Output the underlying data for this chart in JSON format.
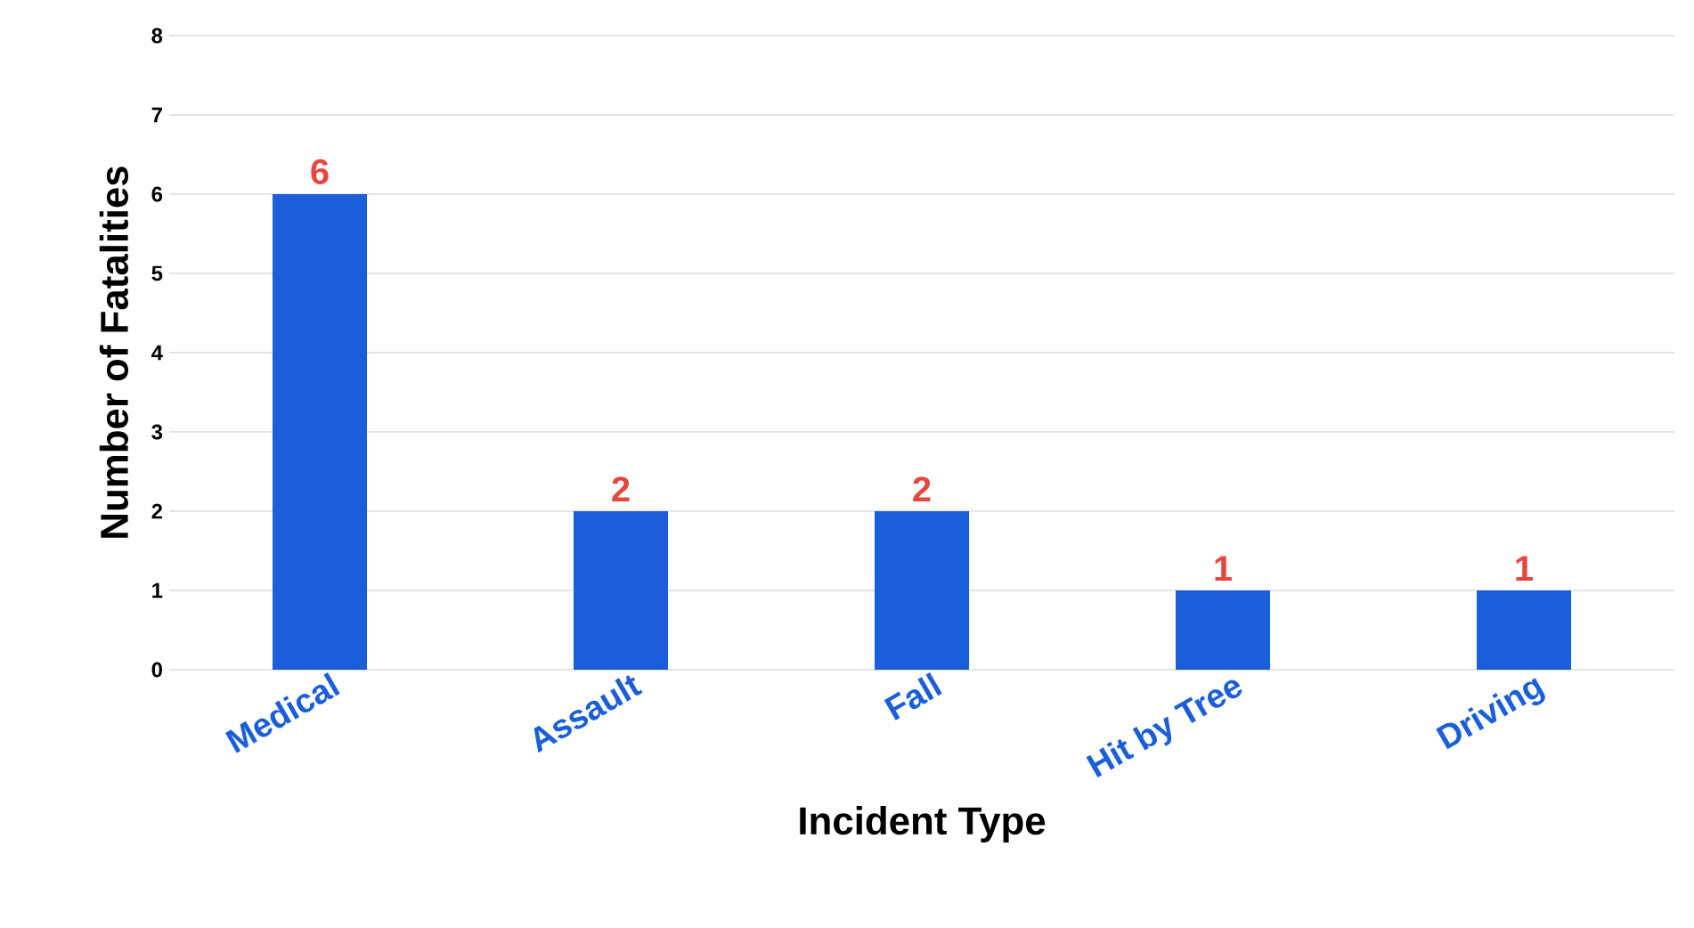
{
  "chart_data": {
    "type": "bar",
    "xlabel": "Incident Type",
    "ylabel": "Number of Fatalities",
    "categories": [
      "Medical",
      "Assault",
      "Fall",
      "Hit by Tree",
      "Driving"
    ],
    "values": [
      6,
      2,
      2,
      1,
      1
    ],
    "color": "#1a5fd9",
    "ylim": [
      0,
      8
    ],
    "yticks": [
      0,
      1,
      2,
      3,
      4,
      5,
      6,
      7,
      8
    ],
    "grid": "y",
    "data_labels": true
  }
}
